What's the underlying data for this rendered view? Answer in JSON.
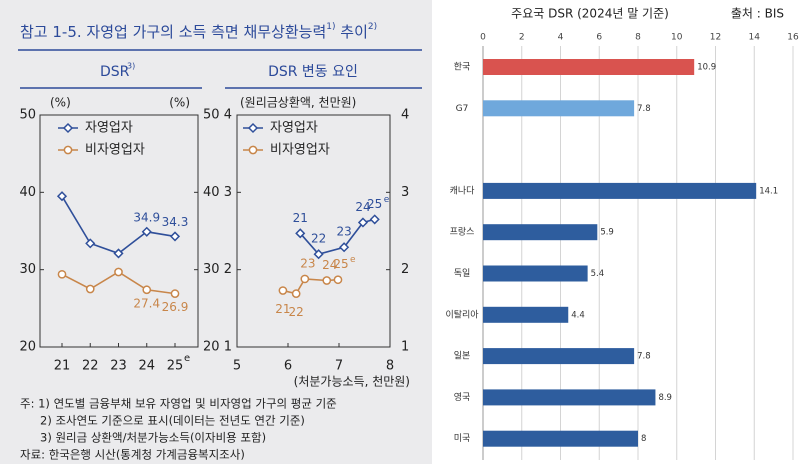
{
  "figure": {
    "title": [
      "참고 1-5. 자영업 가구의 소득 측면 채무상환능력",
      "1)",
      " 추이",
      "2)"
    ],
    "notes": [
      "주: 1) 연도별 금융부채 보유 자영업 및 비자영업 가구의 평균 기준",
      "2) 조사연도 기준으로 표시(데이터는 전년도 연간 기준)",
      "3) 원리금 상환액/처분가능소득(이자비용 포함)"
    ],
    "source": "자료: 한국은행 시산(통계청 가계금융복지조사)"
  },
  "chart_data": [
    {
      "type": "line",
      "title": "DSR",
      "title_note": "3)",
      "y_label_left": "(%)",
      "y_label_right": "(%)",
      "categories": [
        "21",
        "22",
        "23",
        "24",
        "25"
      ],
      "estimate_mark": "e",
      "ylim": [
        20,
        50
      ],
      "yticks": [
        20,
        30,
        40,
        50
      ],
      "series": [
        {
          "name": "자영업자",
          "color": "#2f4f9a",
          "marker": "diamond",
          "values": [
            39.5,
            33.4,
            32.1,
            34.9,
            34.3
          ],
          "value_labels": [
            null,
            null,
            null,
            "34.9",
            "34.3"
          ]
        },
        {
          "name": "비자영업자",
          "color": "#c8864a",
          "marker": "circle",
          "values": [
            29.4,
            27.5,
            29.7,
            27.4,
            26.9
          ],
          "value_labels": [
            null,
            null,
            null,
            "27.4",
            "26.9"
          ]
        }
      ]
    },
    {
      "type": "scatter",
      "title": "DSR 변동 요인",
      "y_label": "(원리금상환액, 천만원)",
      "x_label": "(처분가능소득, 천만원)",
      "xlim": [
        5,
        8
      ],
      "xticks": [
        5,
        6,
        7,
        8
      ],
      "ylim": [
        1,
        4
      ],
      "yticks": [
        1,
        2,
        3,
        4
      ],
      "estimate_mark": "e",
      "series": [
        {
          "name": "자영업자",
          "color": "#2f4f9a",
          "marker": "diamond",
          "x": [
            6.24,
            6.6,
            7.1,
            7.47,
            7.7
          ],
          "values": [
            2.47,
            2.2,
            2.29,
            2.61,
            2.65
          ],
          "point_labels": [
            "21",
            "22",
            "23",
            "24",
            "25"
          ]
        },
        {
          "name": "비자영업자",
          "color": "#c8864a",
          "marker": "circle",
          "x": [
            5.9,
            6.16,
            6.33,
            6.76,
            6.98
          ],
          "values": [
            1.73,
            1.69,
            1.88,
            1.86,
            1.87
          ],
          "point_labels": [
            "21",
            "22",
            "23",
            "24",
            "25"
          ]
        }
      ]
    },
    {
      "type": "bar",
      "orientation": "horizontal",
      "title": "주요국 DSR (2024년 말 기준)",
      "source": "출처 : BIS",
      "categories": [
        "한국",
        "G7",
        null,
        "캐나다",
        "프랑스",
        "독일",
        "이탈리아",
        "일본",
        "영국",
        "미국"
      ],
      "values": [
        10.9,
        7.8,
        null,
        14.1,
        5.9,
        5.4,
        4.4,
        7.8,
        8.9,
        8
      ],
      "colors": [
        "#d9534f",
        "#6fa8dc",
        null,
        "#2e5d9e",
        "#2e5d9e",
        "#2e5d9e",
        "#2e5d9e",
        "#2e5d9e",
        "#2e5d9e",
        "#2e5d9e"
      ],
      "xlim": [
        0,
        16
      ],
      "xticks": [
        0,
        2,
        4,
        6,
        8,
        10,
        12,
        14,
        16
      ],
      "grid": true
    }
  ]
}
